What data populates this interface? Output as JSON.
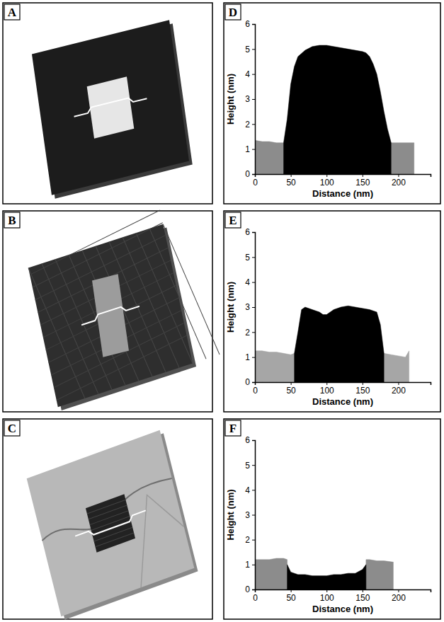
{
  "images": [
    {
      "label": "A"
    },
    {
      "label": "B"
    },
    {
      "label": "C"
    }
  ],
  "chart_data": [
    {
      "type": "area",
      "panel_label": "D",
      "x_label": "Distance (nm)",
      "y_label": "Height (nm)",
      "x": [
        0,
        10,
        20,
        30,
        40,
        45,
        50,
        55,
        60,
        70,
        80,
        90,
        100,
        110,
        120,
        130,
        140,
        150,
        155,
        160,
        165,
        170,
        175,
        180,
        185,
        190,
        200,
        210,
        222
      ],
      "series": [
        {
          "color": "#8c8c8c",
          "values": [
            1.35,
            1.3,
            1.3,
            1.25,
            1.25,
            null,
            null,
            null,
            null,
            null,
            null,
            null,
            null,
            null,
            null,
            null,
            null,
            null,
            null,
            null,
            null,
            null,
            null,
            null,
            null,
            1.25,
            1.25,
            1.25,
            1.25
          ]
        },
        {
          "color": "#000000",
          "values": [
            null,
            null,
            null,
            null,
            1.25,
            2.2,
            3.6,
            4.3,
            4.7,
            4.95,
            5.1,
            5.15,
            5.15,
            5.1,
            5.05,
            5.0,
            4.95,
            4.9,
            4.85,
            4.7,
            4.4,
            4.0,
            3.3,
            2.5,
            1.8,
            1.25,
            null,
            null,
            null
          ]
        }
      ],
      "xlim": [
        0,
        245
      ],
      "xticks": [
        0,
        50,
        100,
        150,
        200
      ],
      "ylim": [
        0,
        6
      ],
      "yticks": [
        0,
        1,
        2,
        3,
        4,
        5,
        6
      ]
    },
    {
      "type": "area",
      "panel_label": "E",
      "x_label": "Distance (nm)",
      "y_label": "Height (nm)",
      "x": [
        0,
        10,
        20,
        30,
        40,
        50,
        55,
        60,
        65,
        70,
        80,
        90,
        95,
        100,
        110,
        120,
        130,
        140,
        150,
        160,
        170,
        175,
        180,
        190,
        200,
        210,
        215
      ],
      "series": [
        {
          "color": "#a6a6a6",
          "values": [
            1.25,
            1.25,
            1.2,
            1.2,
            1.15,
            1.1,
            1.15,
            null,
            null,
            null,
            null,
            null,
            null,
            null,
            null,
            null,
            null,
            null,
            null,
            null,
            null,
            null,
            1.15,
            1.1,
            1.05,
            1.0,
            1.25
          ]
        },
        {
          "color": "#000000",
          "values": [
            null,
            null,
            null,
            null,
            null,
            null,
            1.15,
            2.0,
            2.9,
            3.0,
            2.9,
            2.8,
            2.7,
            2.7,
            2.9,
            3.0,
            3.05,
            3.0,
            2.95,
            2.9,
            2.8,
            2.3,
            1.15,
            null,
            null,
            null,
            null
          ]
        }
      ],
      "xlim": [
        0,
        245
      ],
      "xticks": [
        0,
        50,
        100,
        150,
        200
      ],
      "ylim": [
        0,
        6
      ],
      "yticks": [
        0,
        1,
        2,
        3,
        4,
        5,
        6
      ]
    },
    {
      "type": "area",
      "panel_label": "F",
      "x_label": "Distance (nm)",
      "y_label": "Height (nm)",
      "x": [
        0,
        10,
        20,
        30,
        40,
        45,
        50,
        60,
        70,
        80,
        90,
        100,
        110,
        120,
        130,
        140,
        150,
        155,
        160,
        170,
        180,
        193
      ],
      "series": [
        {
          "color": "#8c8c8c",
          "values": [
            1.2,
            1.2,
            1.2,
            1.25,
            1.25,
            1.2,
            null,
            null,
            null,
            null,
            null,
            null,
            null,
            null,
            null,
            null,
            null,
            1.2,
            1.2,
            1.15,
            1.15,
            1.1
          ]
        },
        {
          "color": "#000000",
          "values": [
            null,
            null,
            null,
            null,
            null,
            1.0,
            0.7,
            0.6,
            0.6,
            0.55,
            0.55,
            0.55,
            0.6,
            0.6,
            0.65,
            0.65,
            0.8,
            1.0,
            null,
            null,
            null,
            null
          ]
        }
      ],
      "xlim": [
        0,
        245
      ],
      "xticks": [
        0,
        50,
        100,
        150,
        200
      ],
      "ylim": [
        0,
        6
      ],
      "yticks": [
        0,
        1,
        2,
        3,
        4,
        5,
        6
      ]
    }
  ]
}
